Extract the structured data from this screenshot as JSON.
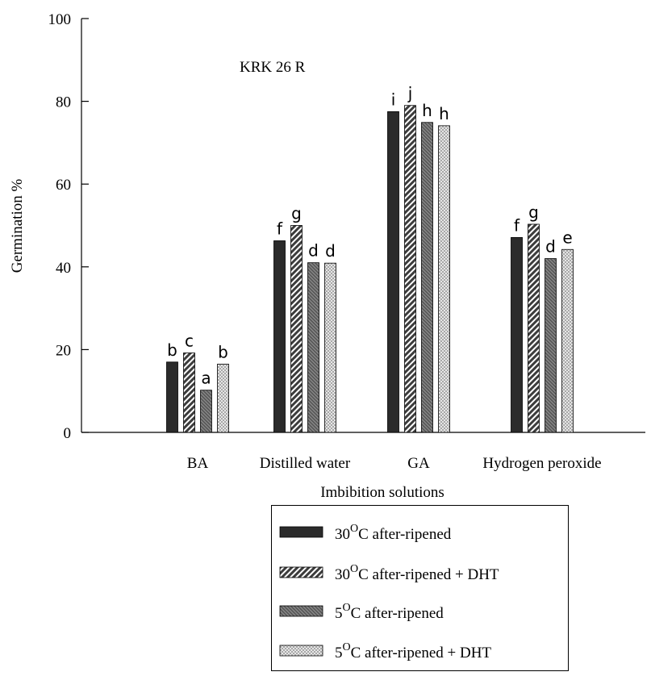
{
  "chart_data": {
    "type": "bar",
    "annotation": "KRK 26 R",
    "xlabel": "Imbibition solutions",
    "ylabel": "Germination %",
    "ylim": [
      0,
      100
    ],
    "yticks": [
      0,
      20,
      40,
      60,
      80,
      100
    ],
    "grid": false,
    "legend_position": "bottom-right, below plot",
    "categories": [
      "BA",
      "Distilled water",
      "GA",
      "Hydrogen peroxide"
    ],
    "series": [
      {
        "name_prefix": "30",
        "name_sup": "O",
        "name_suffix": "C after-ripened",
        "pattern": "solid-dark",
        "color": "#2b2b2b",
        "values": [
          17,
          46.3,
          77.5,
          47.1
        ],
        "letters": [
          "b",
          "f",
          "i",
          "f"
        ]
      },
      {
        "name_prefix": "30",
        "name_sup": "O",
        "name_suffix": "C after-ripened  + DHT",
        "pattern": "diagonal-stripes",
        "color": "#4a4a4a",
        "values": [
          19.2,
          50,
          79,
          50.3
        ],
        "letters": [
          "c",
          "g",
          "j",
          "g"
        ]
      },
      {
        "name_prefix": "5",
        "name_sup": "O",
        "name_suffix": "C after-ripened",
        "pattern": "fine-dark-hatch",
        "color": "#6a6a6a",
        "values": [
          10.2,
          41,
          74.9,
          42
        ],
        "letters": [
          "a",
          "d",
          "h",
          "d"
        ]
      },
      {
        "name_prefix": "5",
        "name_sup": "O",
        "name_suffix": "C after-ripened + DHT",
        "pattern": "light-crosshatch",
        "color": "#bdbdbd",
        "values": [
          16.5,
          40.9,
          74.1,
          44.2
        ],
        "letters": [
          "b",
          "d",
          "h",
          "e"
        ]
      }
    ]
  }
}
